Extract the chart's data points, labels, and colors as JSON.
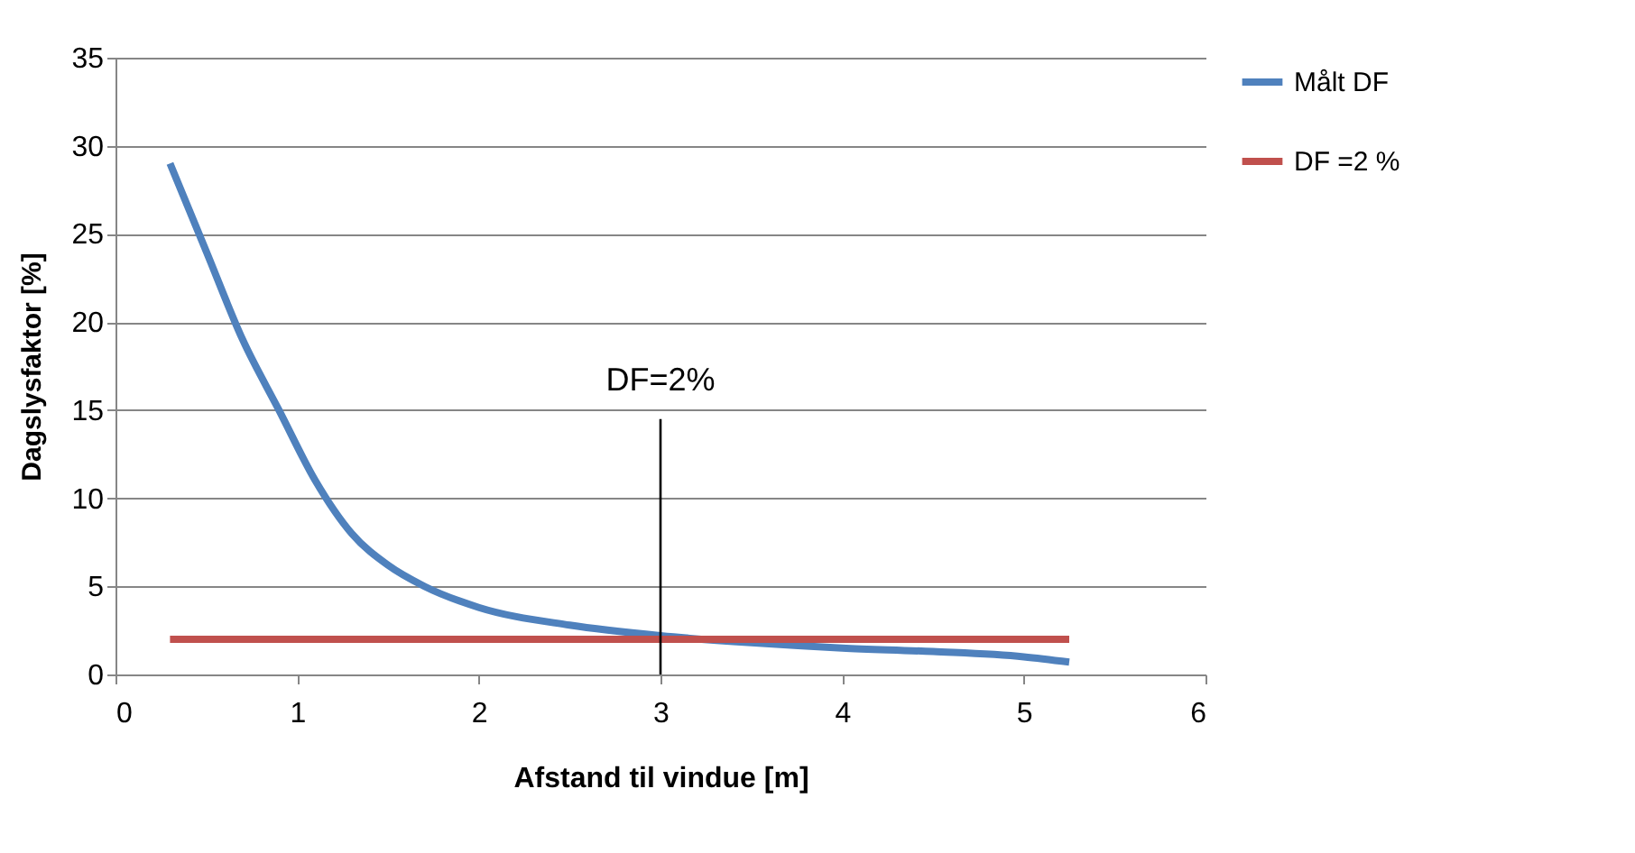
{
  "chart_data": {
    "type": "line",
    "xlabel": "Afstand til vindue [m]",
    "ylabel": "Dagslysfaktor [%]",
    "xlim": [
      0,
      6
    ],
    "xticks": [
      0,
      1,
      2,
      3,
      4,
      5,
      6
    ],
    "ylim": [
      0,
      35
    ],
    "yticks": [
      0,
      5,
      10,
      15,
      20,
      25,
      30,
      35
    ],
    "grid": "y",
    "legend": "right",
    "marker": "none",
    "line_style": "solid",
    "series": [
      {
        "name": "Målt DF",
        "color": "#4f81bd",
        "x": [
          0.3,
          0.5,
          0.7,
          0.9,
          1.1,
          1.3,
          1.5,
          1.7,
          2,
          2.5,
          3,
          3.5,
          4,
          4.5,
          5,
          5.25
        ],
        "values": [
          29,
          24,
          19,
          15,
          11,
          8,
          6.2,
          5,
          3.8,
          2.8,
          2.2,
          1.8,
          1.5,
          1.3,
          1.0,
          0.7
        ]
      },
      {
        "name": "DF =2 %",
        "color": "#c0504d",
        "x": [
          0.3,
          5.25
        ],
        "values": [
          2,
          2
        ]
      }
    ],
    "ref_lines": [
      {
        "axis": "x",
        "value": 3,
        "color": "#000000"
      }
    ],
    "annotations": [
      {
        "text": "DF=2%",
        "x": 3,
        "y": 14.5
      }
    ]
  }
}
